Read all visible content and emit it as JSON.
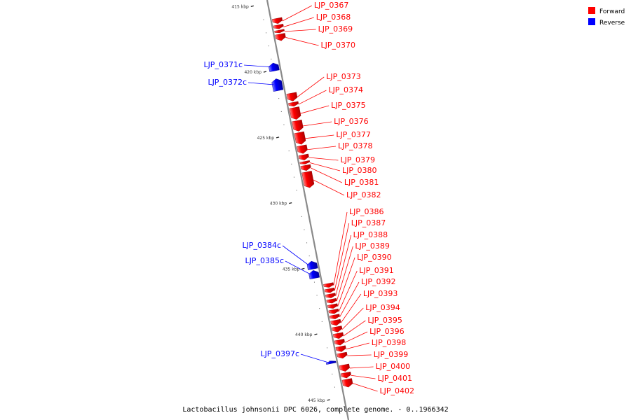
{
  "caption": "Lactobacillus johnsonii DPC 6026, complete genome. - 0..1966342",
  "legend": [
    {
      "label": "Forward",
      "color": "#ff0000"
    },
    {
      "label": "Reverse",
      "color": "#0000ff"
    }
  ],
  "colors": {
    "forward": "#ff0000",
    "reverse": "#0000ff",
    "backbone": "#888888"
  },
  "axis": {
    "unit": "kbp",
    "start_kbp": 414.5,
    "end_kbp": 446.5
  },
  "ticks": [
    {
      "kbp": 415,
      "label": "415 kbp"
    },
    {
      "kbp": 420,
      "label": "420 kbp"
    },
    {
      "kbp": 425,
      "label": "425 kbp"
    },
    {
      "kbp": 430,
      "label": "430 kbp"
    },
    {
      "kbp": 435,
      "label": "435 kbp"
    },
    {
      "kbp": 440,
      "label": "440 kbp"
    },
    {
      "kbp": 445,
      "label": "445 kbp"
    }
  ],
  "genes": [
    {
      "name": "LJP_0367",
      "strand": "forward",
      "start_kbp": 415.9,
      "end_kbp": 416.3
    },
    {
      "name": "LJP_0368",
      "strand": "forward",
      "start_kbp": 416.4,
      "end_kbp": 416.7
    },
    {
      "name": "LJP_0369",
      "strand": "forward",
      "start_kbp": 416.8,
      "end_kbp": 417.0
    },
    {
      "name": "LJP_0370",
      "strand": "forward",
      "start_kbp": 417.1,
      "end_kbp": 417.6
    },
    {
      "name": "LJP_0371c",
      "strand": "reverse",
      "start_kbp": 419.3,
      "end_kbp": 419.9
    },
    {
      "name": "LJP_0372c",
      "strand": "reverse",
      "start_kbp": 420.5,
      "end_kbp": 421.4
    },
    {
      "name": "LJP_0373",
      "strand": "forward",
      "start_kbp": 421.6,
      "end_kbp": 422.2
    },
    {
      "name": "LJP_0374",
      "strand": "forward",
      "start_kbp": 422.3,
      "end_kbp": 422.6
    },
    {
      "name": "LJP_0375",
      "strand": "forward",
      "start_kbp": 422.7,
      "end_kbp": 423.6
    },
    {
      "name": "LJP_0376",
      "strand": "forward",
      "start_kbp": 423.7,
      "end_kbp": 424.5
    },
    {
      "name": "LJP_0377",
      "strand": "forward",
      "start_kbp": 424.6,
      "end_kbp": 425.5
    },
    {
      "name": "LJP_0378",
      "strand": "forward",
      "start_kbp": 425.6,
      "end_kbp": 426.2
    },
    {
      "name": "LJP_0379",
      "strand": "forward",
      "start_kbp": 426.3,
      "end_kbp": 426.7
    },
    {
      "name": "LJP_0380",
      "strand": "forward",
      "start_kbp": 426.8,
      "end_kbp": 427.0
    },
    {
      "name": "LJP_0381",
      "strand": "forward",
      "start_kbp": 427.1,
      "end_kbp": 427.5
    },
    {
      "name": "LJP_0382",
      "strand": "forward",
      "start_kbp": 427.6,
      "end_kbp": 428.8
    },
    {
      "name": "LJP_0384c",
      "strand": "reverse",
      "start_kbp": 434.4,
      "end_kbp": 435.0
    },
    {
      "name": "LJP_0385c",
      "strand": "reverse",
      "start_kbp": 435.1,
      "end_kbp": 435.7
    },
    {
      "name": "LJP_0386",
      "strand": "forward",
      "start_kbp": 436.1,
      "end_kbp": 436.4
    },
    {
      "name": "LJP_0387",
      "strand": "forward",
      "start_kbp": 436.5,
      "end_kbp": 436.8
    },
    {
      "name": "LJP_0388",
      "strand": "forward",
      "start_kbp": 436.9,
      "end_kbp": 437.2
    },
    {
      "name": "LJP_0389",
      "strand": "forward",
      "start_kbp": 437.3,
      "end_kbp": 437.6
    },
    {
      "name": "LJP_0390",
      "strand": "forward",
      "start_kbp": 437.7,
      "end_kbp": 438.0
    },
    {
      "name": "LJP_0391",
      "strand": "forward",
      "start_kbp": 438.1,
      "end_kbp": 438.4
    },
    {
      "name": "LJP_0392",
      "strand": "forward",
      "start_kbp": 438.5,
      "end_kbp": 438.8
    },
    {
      "name": "LJP_0393",
      "strand": "forward",
      "start_kbp": 438.9,
      "end_kbp": 439.3
    },
    {
      "name": "LJP_0394",
      "strand": "forward",
      "start_kbp": 439.4,
      "end_kbp": 439.8
    },
    {
      "name": "LJP_0395",
      "strand": "forward",
      "start_kbp": 439.9,
      "end_kbp": 440.3
    },
    {
      "name": "LJP_0396",
      "strand": "forward",
      "start_kbp": 440.4,
      "end_kbp": 440.8
    },
    {
      "name": "LJP_0397c",
      "strand": "reverse",
      "start_kbp": 442.0,
      "end_kbp": 442.2
    },
    {
      "name": "LJP_0398",
      "strand": "forward",
      "start_kbp": 440.9,
      "end_kbp": 441.3
    },
    {
      "name": "LJP_0399",
      "strand": "forward",
      "start_kbp": 441.4,
      "end_kbp": 441.8
    },
    {
      "name": "LJP_0400",
      "strand": "forward",
      "start_kbp": 442.3,
      "end_kbp": 442.8
    },
    {
      "name": "LJP_0401",
      "strand": "forward",
      "start_kbp": 442.9,
      "end_kbp": 443.3
    },
    {
      "name": "LJP_0402",
      "strand": "forward",
      "start_kbp": 443.4,
      "end_kbp": 444.0
    }
  ]
}
